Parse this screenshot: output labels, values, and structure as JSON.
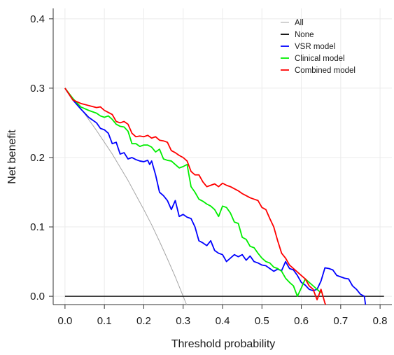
{
  "chart_data": {
    "type": "line",
    "title": "",
    "xlabel": "Threshold probability",
    "ylabel": "Net benefit",
    "xlim": [
      -0.03,
      0.83
    ],
    "ylim": [
      -0.012,
      0.415
    ],
    "x_ticks": [
      0.0,
      0.1,
      0.2,
      0.3,
      0.4,
      0.5,
      0.6,
      0.7,
      0.8
    ],
    "x_tick_labels": [
      "0.0",
      "0.1",
      "0.2",
      "0.3",
      "0.4",
      "0.5",
      "0.6",
      "0.7",
      "0.8"
    ],
    "y_ticks": [
      0.0,
      0.1,
      0.2,
      0.3,
      0.4
    ],
    "y_tick_labels": [
      "0.0",
      "0.1",
      "0.2",
      "0.3",
      "0.4"
    ],
    "grid": true,
    "legend_position": "top-right",
    "series": [
      {
        "name": "All",
        "color": "#a6a6a6",
        "x": [
          0.0,
          0.02,
          0.04,
          0.06,
          0.08,
          0.1,
          0.12,
          0.14,
          0.16,
          0.18,
          0.2,
          0.22,
          0.24,
          0.26,
          0.28,
          0.3,
          0.31
        ],
        "y": [
          0.3,
          0.286,
          0.271,
          0.255,
          0.239,
          0.222,
          0.205,
          0.186,
          0.167,
          0.146,
          0.125,
          0.103,
          0.079,
          0.054,
          0.028,
          0.0,
          -0.014
        ]
      },
      {
        "name": "None",
        "color": "#000000",
        "x": [
          0.0,
          0.81
        ],
        "y": [
          0.0,
          0.0
        ]
      },
      {
        "name": "VSR model",
        "color": "#0000ff",
        "x": [
          0.0,
          0.02,
          0.04,
          0.06,
          0.08,
          0.09,
          0.1,
          0.11,
          0.12,
          0.13,
          0.14,
          0.15,
          0.16,
          0.17,
          0.18,
          0.19,
          0.2,
          0.21,
          0.215,
          0.22,
          0.23,
          0.24,
          0.25,
          0.26,
          0.27,
          0.28,
          0.29,
          0.3,
          0.31,
          0.32,
          0.33,
          0.34,
          0.35,
          0.36,
          0.37,
          0.38,
          0.39,
          0.4,
          0.41,
          0.42,
          0.43,
          0.44,
          0.45,
          0.46,
          0.47,
          0.48,
          0.49,
          0.5,
          0.51,
          0.52,
          0.53,
          0.54,
          0.55,
          0.56,
          0.57,
          0.58,
          0.59,
          0.6,
          0.61,
          0.62,
          0.63,
          0.64,
          0.65,
          0.66,
          0.67,
          0.68,
          0.69,
          0.7,
          0.71,
          0.72,
          0.73,
          0.74,
          0.75,
          0.76,
          0.765
        ],
        "y": [
          0.3,
          0.283,
          0.27,
          0.258,
          0.25,
          0.242,
          0.24,
          0.235,
          0.22,
          0.222,
          0.205,
          0.207,
          0.198,
          0.2,
          0.197,
          0.195,
          0.194,
          0.196,
          0.19,
          0.195,
          0.175,
          0.15,
          0.145,
          0.138,
          0.125,
          0.138,
          0.115,
          0.118,
          0.114,
          0.112,
          0.1,
          0.08,
          0.077,
          0.073,
          0.08,
          0.066,
          0.062,
          0.06,
          0.05,
          0.055,
          0.06,
          0.057,
          0.06,
          0.052,
          0.058,
          0.05,
          0.048,
          0.045,
          0.044,
          0.04,
          0.036,
          0.039,
          0.037,
          0.05,
          0.04,
          0.038,
          0.03,
          0.02,
          0.016,
          0.01,
          0.008,
          0.01,
          0.022,
          0.041,
          0.04,
          0.038,
          0.03,
          0.028,
          0.026,
          0.025,
          0.015,
          0.01,
          0.003,
          0.0,
          -0.02
        ]
      },
      {
        "name": "Clinical model",
        "color": "#00ee00",
        "x": [
          0.0,
          0.02,
          0.04,
          0.06,
          0.08,
          0.09,
          0.1,
          0.11,
          0.12,
          0.13,
          0.14,
          0.15,
          0.16,
          0.17,
          0.18,
          0.19,
          0.2,
          0.21,
          0.22,
          0.23,
          0.24,
          0.25,
          0.26,
          0.27,
          0.28,
          0.29,
          0.3,
          0.31,
          0.32,
          0.33,
          0.34,
          0.35,
          0.36,
          0.37,
          0.38,
          0.39,
          0.4,
          0.41,
          0.42,
          0.43,
          0.44,
          0.45,
          0.46,
          0.47,
          0.48,
          0.49,
          0.5,
          0.51,
          0.52,
          0.53,
          0.54,
          0.55,
          0.56,
          0.57,
          0.58,
          0.59,
          0.6,
          0.61,
          0.62,
          0.63,
          0.64,
          0.65
        ],
        "y": [
          0.3,
          0.285,
          0.273,
          0.268,
          0.264,
          0.26,
          0.258,
          0.26,
          0.255,
          0.248,
          0.245,
          0.244,
          0.238,
          0.22,
          0.22,
          0.216,
          0.218,
          0.218,
          0.215,
          0.208,
          0.212,
          0.198,
          0.196,
          0.195,
          0.19,
          0.185,
          0.187,
          0.19,
          0.158,
          0.15,
          0.14,
          0.137,
          0.133,
          0.13,
          0.125,
          0.115,
          0.13,
          0.128,
          0.12,
          0.107,
          0.105,
          0.085,
          0.082,
          0.072,
          0.07,
          0.062,
          0.055,
          0.05,
          0.048,
          0.042,
          0.04,
          0.036,
          0.026,
          0.02,
          0.015,
          0.0,
          0.012,
          0.025,
          0.02,
          0.015,
          0.01,
          0.005
        ]
      },
      {
        "name": "Combined model",
        "color": "#ff0000",
        "x": [
          0.0,
          0.02,
          0.04,
          0.06,
          0.08,
          0.09,
          0.1,
          0.11,
          0.12,
          0.13,
          0.14,
          0.15,
          0.16,
          0.17,
          0.18,
          0.19,
          0.2,
          0.21,
          0.22,
          0.23,
          0.24,
          0.25,
          0.26,
          0.27,
          0.28,
          0.29,
          0.3,
          0.31,
          0.32,
          0.33,
          0.34,
          0.35,
          0.36,
          0.37,
          0.38,
          0.39,
          0.4,
          0.41,
          0.42,
          0.43,
          0.44,
          0.45,
          0.46,
          0.47,
          0.48,
          0.49,
          0.5,
          0.51,
          0.52,
          0.53,
          0.54,
          0.55,
          0.56,
          0.57,
          0.58,
          0.59,
          0.6,
          0.61,
          0.62,
          0.63,
          0.64,
          0.65,
          0.66,
          0.665
        ],
        "y": [
          0.3,
          0.283,
          0.278,
          0.275,
          0.272,
          0.273,
          0.268,
          0.265,
          0.262,
          0.252,
          0.25,
          0.252,
          0.248,
          0.235,
          0.23,
          0.231,
          0.23,
          0.232,
          0.228,
          0.23,
          0.225,
          0.224,
          0.222,
          0.21,
          0.207,
          0.203,
          0.2,
          0.195,
          0.18,
          0.175,
          0.175,
          0.165,
          0.158,
          0.16,
          0.162,
          0.158,
          0.163,
          0.16,
          0.158,
          0.155,
          0.152,
          0.148,
          0.145,
          0.142,
          0.14,
          0.138,
          0.128,
          0.125,
          0.112,
          0.1,
          0.08,
          0.062,
          0.055,
          0.045,
          0.04,
          0.035,
          0.03,
          0.025,
          0.015,
          0.01,
          -0.005,
          0.01,
          -0.01,
          -0.015
        ]
      }
    ]
  }
}
